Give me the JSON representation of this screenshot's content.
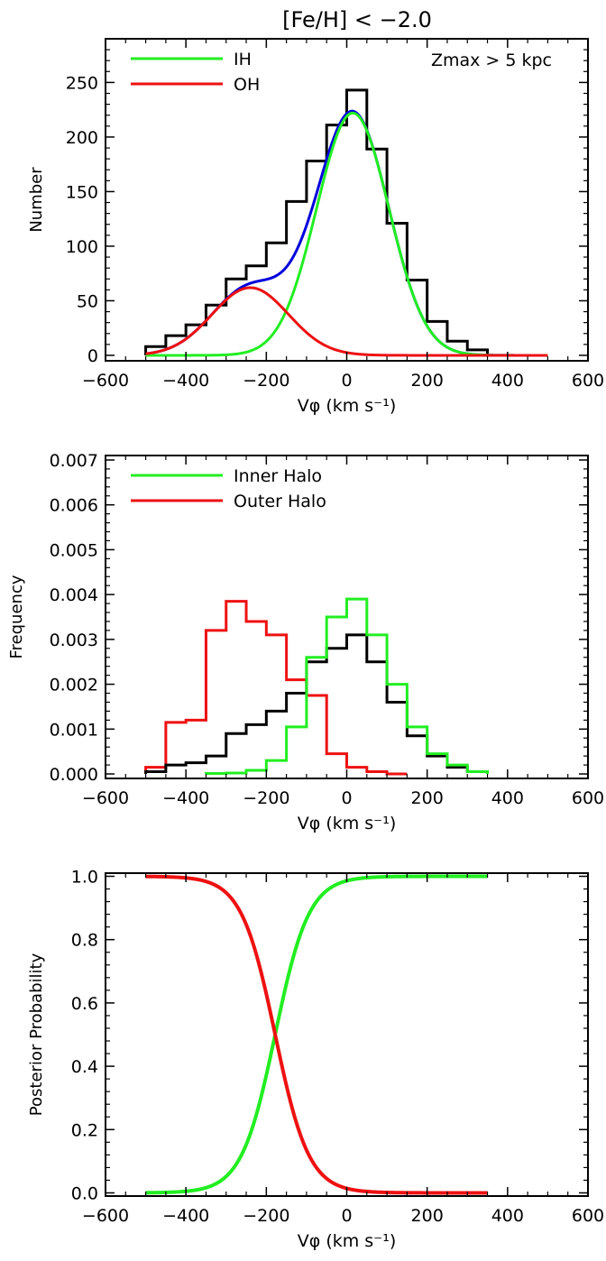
{
  "figure_title": "[Fe/H] < −2.0",
  "colors": {
    "black": "#000000",
    "blue": "#0000dd",
    "green": "#22ee22",
    "red": "#ee1111"
  },
  "chart_data": [
    {
      "type": "line",
      "panel": "top",
      "xlabel": "Vφ (km s⁻¹)",
      "ylabel": "Number",
      "xlim": [
        -600,
        600
      ],
      "ylim": [
        -5,
        290
      ],
      "xticks": [
        -600,
        -400,
        -200,
        0,
        200,
        400,
        600
      ],
      "yticks": [
        0,
        50,
        100,
        150,
        200,
        250
      ],
      "annotation": "Zmax > 5 kpc",
      "legend": [
        {
          "name": "IH",
          "color": "#22ee22"
        },
        {
          "name": "OH",
          "color": "#ee1111"
        }
      ],
      "histogram": {
        "color": "#000000",
        "edges": [
          -500,
          -450,
          -400,
          -350,
          -300,
          -250,
          -200,
          -150,
          -100,
          -50,
          0,
          50,
          100,
          150,
          200,
          250,
          300,
          350
        ],
        "values": [
          8,
          18,
          28,
          46,
          70,
          82,
          103,
          141,
          178,
          211,
          243,
          189,
          121,
          69,
          31,
          13,
          5
        ]
      },
      "series": [
        {
          "name": "IH",
          "color": "#22ee22",
          "model": "gaussian",
          "amplitude": 222,
          "mean": 15,
          "sigma": 90,
          "x_range": [
            -500,
            500
          ]
        },
        {
          "name": "OH",
          "color": "#ee1111",
          "model": "gaussian",
          "amplitude": 62,
          "mean": -240,
          "sigma": 95,
          "x_range": [
            -500,
            500
          ]
        },
        {
          "name": "",
          "color": "#0000dd",
          "model": "sum",
          "x_range": [
            -500,
            500
          ]
        }
      ]
    },
    {
      "type": "line",
      "panel": "middle",
      "xlabel": "Vφ (km s⁻¹)",
      "ylabel": "Frequency",
      "xlim": [
        -600,
        600
      ],
      "ylim": [
        -0.0001,
        0.0071
      ],
      "xticks": [
        -600,
        -400,
        -200,
        0,
        200,
        400,
        600
      ],
      "yticks": [
        0.0,
        0.001,
        0.002,
        0.003,
        0.004,
        0.005,
        0.006,
        0.007
      ],
      "ytick_labels": [
        "0.000",
        "0.001",
        "0.002",
        "0.003",
        "0.004",
        "0.005",
        "0.006",
        "0.007"
      ],
      "legend": [
        {
          "name": "Inner Halo",
          "color": "#22ee22"
        },
        {
          "name": "Outer Halo",
          "color": "#ee1111"
        }
      ],
      "series": [
        {
          "name": "Outer Halo",
          "color": "#ee1111",
          "edges": [
            -500,
            -450,
            -400,
            -350,
            -300,
            -250,
            -200,
            -150,
            -100,
            -50,
            0,
            50,
            100,
            150
          ],
          "values": [
            0.00015,
            0.00115,
            0.0012,
            0.0032,
            0.00385,
            0.0034,
            0.0031,
            0.0021,
            0.00175,
            0.00045,
            0.00015,
            5e-05,
            0.0
          ]
        },
        {
          "name": "",
          "color": "#000000",
          "edges": [
            -500,
            -450,
            -400,
            -350,
            -300,
            -250,
            -200,
            -150,
            -100,
            -50,
            0,
            50,
            100,
            150,
            200,
            250,
            300,
            350
          ],
          "values": [
            5e-05,
            0.0002,
            0.00025,
            0.0004,
            0.0009,
            0.0011,
            0.0014,
            0.0018,
            0.0025,
            0.0028,
            0.0031,
            0.0025,
            0.0016,
            0.00085,
            0.0004,
            0.00015,
            5e-05
          ]
        },
        {
          "name": "Inner Halo",
          "color": "#22ee22",
          "edges": [
            -350,
            -300,
            -250,
            -200,
            -150,
            -100,
            -50,
            0,
            50,
            100,
            150,
            200,
            250,
            300,
            350
          ],
          "values": [
            1e-05,
            2e-05,
            8e-05,
            0.0003,
            0.00105,
            0.0026,
            0.0035,
            0.0039,
            0.0031,
            0.002,
            0.00105,
            0.00045,
            0.0002,
            5e-05
          ]
        }
      ]
    },
    {
      "type": "line",
      "panel": "bottom",
      "xlabel": "Vφ (km s⁻¹)",
      "ylabel": "Posterior Probability",
      "xlim": [
        -600,
        600
      ],
      "ylim": [
        -0.01,
        1.01
      ],
      "xticks": [
        -600,
        -400,
        -200,
        0,
        200,
        400,
        600
      ],
      "yticks": [
        0.0,
        0.2,
        0.4,
        0.6,
        0.8,
        1.0
      ],
      "ytick_labels": [
        "0.0",
        "0.2",
        "0.4",
        "0.6",
        "0.8",
        "1.0"
      ],
      "series": [
        {
          "name": "",
          "color": "#22ee22",
          "model": "logistic_up",
          "midpoint": -178,
          "scale": 42,
          "x_range": [
            -500,
            350
          ]
        },
        {
          "name": "",
          "color": "#ee1111",
          "model": "logistic_down",
          "midpoint": -178,
          "scale": 42,
          "x_range": [
            -500,
            350
          ]
        }
      ]
    }
  ]
}
